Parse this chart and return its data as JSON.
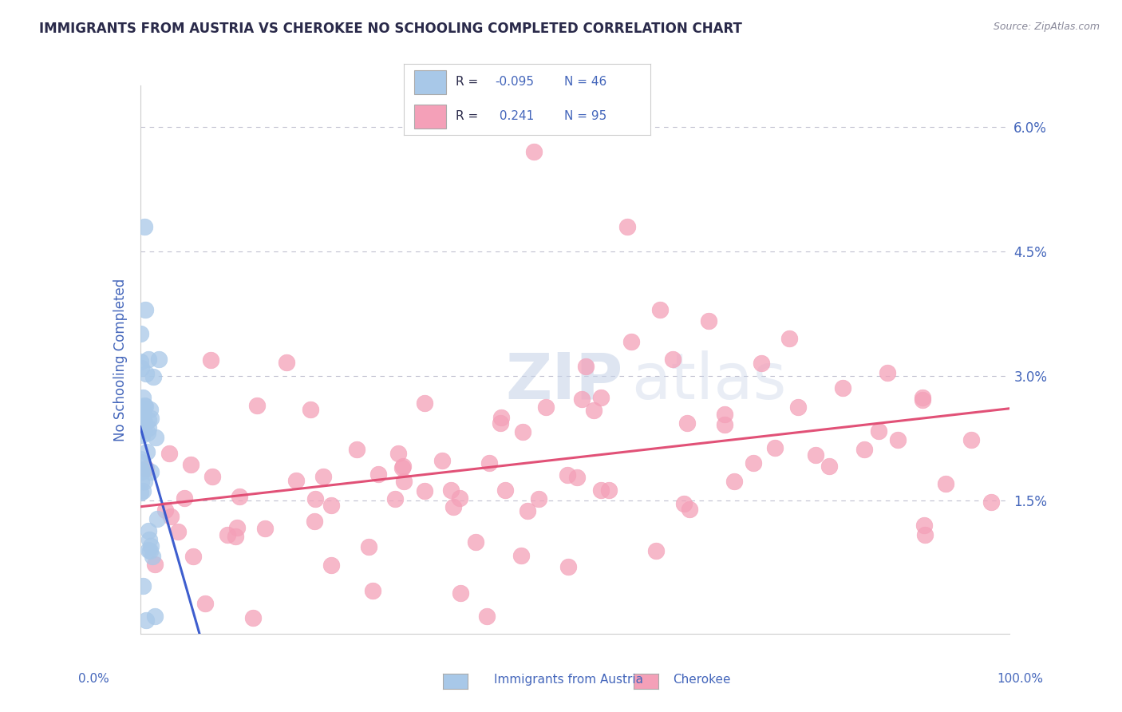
{
  "title": "IMMIGRANTS FROM AUSTRIA VS CHEROKEE NO SCHOOLING COMPLETED CORRELATION CHART",
  "source": "Source: ZipAtlas.com",
  "ylabel": "No Schooling Completed",
  "xmin": 0.0,
  "xmax": 1.0,
  "ymin": -0.001,
  "ymax": 0.065,
  "legend_austria_r": "-0.095",
  "legend_austria_n": "46",
  "legend_cherokee_r": "0.241",
  "legend_cherokee_n": "95",
  "austria_color": "#a8c8e8",
  "cherokee_color": "#f4a0b8",
  "austria_line_color": "#3355cc",
  "cherokee_line_color": "#e04870",
  "background_color": "#ffffff",
  "grid_color": "#c0c0d0",
  "title_color": "#2a2a4a",
  "axis_label_color": "#4466bb",
  "tick_label_color": "#4466bb",
  "source_color": "#888899",
  "legend_text_color": "#2a2a4a",
  "legend_value_color": "#4466bb"
}
